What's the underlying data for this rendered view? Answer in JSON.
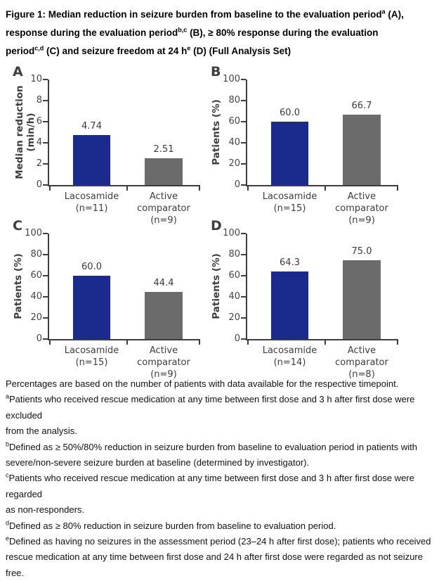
{
  "title": {
    "segments": [
      {
        "text": "Figure 1: Median reduction in seizure burden from baseline to the evaluation period"
      },
      {
        "sup": "a"
      },
      {
        "text": " (A),"
      },
      {
        "br": true
      },
      {
        "text": "response during the evaluation period"
      },
      {
        "sup": "b,c"
      },
      {
        "text": " (B), ≥ 80% response during the evaluation"
      },
      {
        "br": true
      },
      {
        "text": "period"
      },
      {
        "sup": "c,d"
      },
      {
        "text": " (C) and seizure freedom at 24 h"
      },
      {
        "sup": "e"
      },
      {
        "text": " (D) (Full Analysis Set)"
      }
    ]
  },
  "colors": {
    "lacosamide_bar": "#1B2A8D",
    "comparator_bar": "#6B6B6B",
    "axis": "#3E3E3E",
    "label_text": "#3E3E3E"
  },
  "chart_data": [
    {
      "panel": "A",
      "type": "bar",
      "title": "",
      "ylabel": "Median reduction\n(min/h)",
      "xlabel": "",
      "ylim": [
        0,
        10
      ],
      "yticks": [
        0,
        2,
        4,
        6,
        8,
        10
      ],
      "categories": [
        "Lacosamide\n(n=11)",
        "Active comparator\n(n=9)"
      ],
      "series_names": [
        "Lacosamide",
        "Active comparator"
      ],
      "values": [
        4.74,
        2.51
      ],
      "value_labels": [
        "4.74",
        "2.51"
      ],
      "grid": "off",
      "legend": "none"
    },
    {
      "panel": "B",
      "type": "bar",
      "title": "",
      "ylabel": "Patients (%)",
      "xlabel": "",
      "ylim": [
        0,
        100
      ],
      "yticks": [
        0,
        20,
        40,
        60,
        80,
        100
      ],
      "categories": [
        "Lacosamide\n(n=15)",
        "Active comparator\n(n=9)"
      ],
      "series_names": [
        "Lacosamide",
        "Active comparator"
      ],
      "values": [
        60.0,
        66.7
      ],
      "value_labels": [
        "60.0",
        "66.7"
      ],
      "grid": "off",
      "legend": "none"
    },
    {
      "panel": "C",
      "type": "bar",
      "title": "",
      "ylabel": "Patients (%)",
      "xlabel": "",
      "ylim": [
        0,
        100
      ],
      "yticks": [
        0,
        20,
        40,
        60,
        80,
        100
      ],
      "categories": [
        "Lacosamide\n(n=15)",
        "Active comparator\n(n=9)"
      ],
      "series_names": [
        "Lacosamide",
        "Active comparator"
      ],
      "values": [
        60.0,
        44.4
      ],
      "value_labels": [
        "60.0",
        "44.4"
      ],
      "grid": "off",
      "legend": "none"
    },
    {
      "panel": "D",
      "type": "bar",
      "title": "",
      "ylabel": "Patients (%)",
      "xlabel": "",
      "ylim": [
        0,
        100
      ],
      "yticks": [
        0,
        20,
        40,
        60,
        80,
        100
      ],
      "categories": [
        "Lacosamide\n(n=14)",
        "Active comparator\n(n=8)"
      ],
      "series_names": [
        "Lacosamide",
        "Active comparator"
      ],
      "values": [
        64.3,
        75.0
      ],
      "value_labels": [
        "64.3",
        "75.0"
      ],
      "grid": "off",
      "legend": "none"
    }
  ],
  "footnotes": [
    {
      "sup": "",
      "text": "Percentages are based on the number of patients with data available for the respective timepoint."
    },
    {
      "sup": "a",
      "text": "Patients who received rescue medication at any time between first dose and 3 h after first dose were excluded\nfrom the analysis."
    },
    {
      "sup": "b",
      "text": "Defined as ≥ 50%/80% reduction in seizure burden from baseline to evaluation period in patients with\nsevere/non-severe seizure burden at baseline (determined by investigator)."
    },
    {
      "sup": "c",
      "text": "Patients who received rescue medication at any time between first dose and 3 h after first dose were regarded\nas non-responders."
    },
    {
      "sup": "d",
      "text": "Defined as ≥ 80% reduction in seizure burden from baseline to evaluation period."
    },
    {
      "sup": "e",
      "text": "Defined as having no seizures in the assessment period (23–24 h after first dose); patients who received\nrescue medication at any time between first dose and 24 h after first dose were regarded as not seizure free."
    }
  ]
}
